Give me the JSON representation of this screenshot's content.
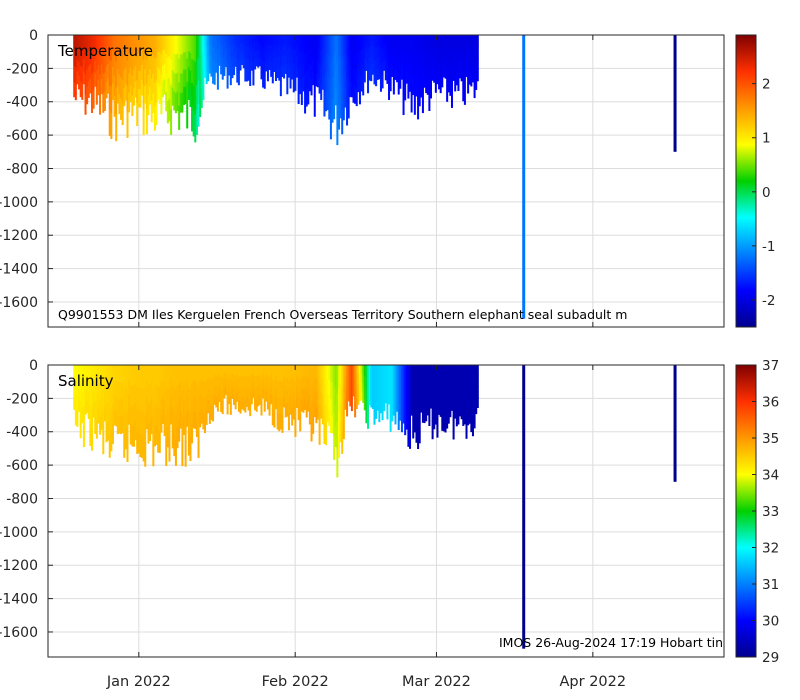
{
  "chart_data": [
    {
      "type": "heatmap",
      "title": "Temperature",
      "annotation": "Q9901553 DM Iles Kerguelen French Overseas Territory Southern elephant seal subadult m",
      "xlabel": "",
      "ylabel": "",
      "xlim": [
        "2021-12-14",
        "2022-04-27"
      ],
      "ylim": [
        -1750,
        0
      ],
      "yticks": [
        0,
        -200,
        -400,
        -600,
        -800,
        -1000,
        -1200,
        -1400,
        -1600
      ],
      "ytick_labels": [
        "0",
        "-200",
        "-400",
        "-600",
        "-800",
        "-1000",
        "-1200",
        "-1400",
        "-1600"
      ],
      "xticks": [
        "2022-01-01",
        "2022-02-01",
        "2022-03-01",
        "2022-04-01"
      ],
      "xtick_labels": [
        "Jan 2022",
        "Feb 2022",
        "Mar 2022",
        "Apr 2022"
      ],
      "grid": true,
      "colorbar": {
        "range": [
          -2.5,
          2.9
        ],
        "ticks": [
          -2,
          -1,
          0,
          1,
          2
        ],
        "tick_labels": [
          "-2",
          "-1",
          "0",
          "1",
          "2"
        ],
        "colormap": "jet"
      },
      "profile_envelope": [
        {
          "x": "2021-12-19",
          "max_depth": -480,
          "surface_value": 2.6
        },
        {
          "x": "2021-12-23",
          "max_depth": -520,
          "surface_value": 2.3
        },
        {
          "x": "2021-12-27",
          "max_depth": -650,
          "surface_value": 1.8
        },
        {
          "x": "2021-12-31",
          "max_depth": -600,
          "surface_value": 1.6
        },
        {
          "x": "2022-01-04",
          "max_depth": -640,
          "surface_value": 1.4
        },
        {
          "x": "2022-01-08",
          "max_depth": -600,
          "surface_value": 0.9
        },
        {
          "x": "2022-01-12",
          "max_depth": -650,
          "surface_value": 0.4
        },
        {
          "x": "2022-01-15",
          "max_depth": -340,
          "surface_value": -1.2
        },
        {
          "x": "2022-01-20",
          "max_depth": -310,
          "surface_value": -1.6
        },
        {
          "x": "2022-01-25",
          "max_depth": -330,
          "surface_value": -1.8
        },
        {
          "x": "2022-01-30",
          "max_depth": -420,
          "surface_value": -1.7
        },
        {
          "x": "2022-02-05",
          "max_depth": -520,
          "surface_value": -1.9
        },
        {
          "x": "2022-02-09",
          "max_depth": -700,
          "surface_value": -1.2
        },
        {
          "x": "2022-02-12",
          "max_depth": -480,
          "surface_value": -1.9
        },
        {
          "x": "2022-02-16",
          "max_depth": -320,
          "surface_value": -1.7
        },
        {
          "x": "2022-02-20",
          "max_depth": -400,
          "surface_value": -1.9
        },
        {
          "x": "2022-02-24",
          "max_depth": -550,
          "surface_value": -1.9
        },
        {
          "x": "2022-03-01",
          "max_depth": -440,
          "surface_value": -2.0
        },
        {
          "x": "2022-03-05",
          "max_depth": -460,
          "surface_value": -2.0
        },
        {
          "x": "2022-03-09",
          "max_depth": -420,
          "surface_value": -2.0
        }
      ],
      "isolated_profiles": [
        {
          "x": "2022-03-18",
          "max_depth": -1700,
          "value": -1.2
        },
        {
          "x": "2022-04-17",
          "max_depth": -700,
          "value": -2.5
        }
      ]
    },
    {
      "type": "heatmap",
      "title": "Salinity",
      "annotation": "IMOS 26-Aug-2024 17:19 Hobart tin",
      "xlabel": "",
      "ylabel": "",
      "xlim": [
        "2021-12-14",
        "2022-04-27"
      ],
      "ylim": [
        -1750,
        0
      ],
      "yticks": [
        0,
        -200,
        -400,
        -600,
        -800,
        -1000,
        -1200,
        -1400,
        -1600
      ],
      "ytick_labels": [
        "0",
        "-200",
        "-400",
        "-600",
        "-800",
        "-1000",
        "-1200",
        "-1400",
        "-1600"
      ],
      "xticks": [
        "2022-01-01",
        "2022-02-01",
        "2022-03-01",
        "2022-04-01"
      ],
      "xtick_labels": [
        "Jan 2022",
        "Feb 2022",
        "Mar 2022",
        "Apr 2022"
      ],
      "grid": true,
      "colorbar": {
        "range": [
          29,
          37
        ],
        "ticks": [
          29,
          30,
          31,
          32,
          33,
          34,
          35,
          36,
          37
        ],
        "tick_labels": [
          "29",
          "30",
          "31",
          "32",
          "33",
          "34",
          "35",
          "36",
          "37"
        ],
        "colormap": "jet"
      },
      "profile_envelope": [
        {
          "x": "2021-12-19",
          "max_depth": -480,
          "surface_value": 34.0
        },
        {
          "x": "2021-12-23",
          "max_depth": -520,
          "surface_value": 34.2
        },
        {
          "x": "2021-12-27",
          "max_depth": -650,
          "surface_value": 34.4
        },
        {
          "x": "2021-12-31",
          "max_depth": -600,
          "surface_value": 34.5
        },
        {
          "x": "2022-01-04",
          "max_depth": -640,
          "surface_value": 34.5
        },
        {
          "x": "2022-01-08",
          "max_depth": -600,
          "surface_value": 34.6
        },
        {
          "x": "2022-01-12",
          "max_depth": -650,
          "surface_value": 34.6
        },
        {
          "x": "2022-01-15",
          "max_depth": -340,
          "surface_value": 34.6
        },
        {
          "x": "2022-01-20",
          "max_depth": -310,
          "surface_value": 34.6
        },
        {
          "x": "2022-01-25",
          "max_depth": -330,
          "surface_value": 34.6
        },
        {
          "x": "2022-01-30",
          "max_depth": -420,
          "surface_value": 34.6
        },
        {
          "x": "2022-02-05",
          "max_depth": -520,
          "surface_value": 34.7
        },
        {
          "x": "2022-02-09",
          "max_depth": -700,
          "surface_value": 33.5
        },
        {
          "x": "2022-02-12",
          "max_depth": -300,
          "surface_value": 35.8
        },
        {
          "x": "2022-02-16",
          "max_depth": -400,
          "surface_value": 31.6
        },
        {
          "x": "2022-02-20",
          "max_depth": -400,
          "surface_value": 31.8
        },
        {
          "x": "2022-02-24",
          "max_depth": -550,
          "surface_value": 29.3
        },
        {
          "x": "2022-03-01",
          "max_depth": -440,
          "surface_value": 29.3
        },
        {
          "x": "2022-03-05",
          "max_depth": -460,
          "surface_value": 29.3
        },
        {
          "x": "2022-03-09",
          "max_depth": -420,
          "surface_value": 29.3
        }
      ],
      "isolated_profiles": [
        {
          "x": "2022-03-18",
          "max_depth": -1700,
          "value": 29.0
        },
        {
          "x": "2022-04-17",
          "max_depth": -700,
          "value": 29.0
        }
      ]
    }
  ]
}
